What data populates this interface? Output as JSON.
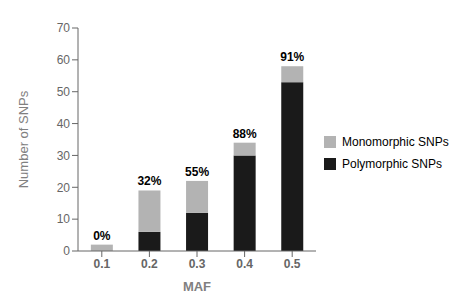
{
  "chart_data": {
    "type": "bar",
    "stacked": true,
    "categories": [
      "0.1",
      "0.2",
      "0.3",
      "0.4",
      "0.5"
    ],
    "series": [
      {
        "name": "Polymorphic SNPs",
        "color": "#1a1a1a",
        "values": [
          0,
          6,
          12,
          30,
          53
        ]
      },
      {
        "name": "Monomorphic SNPs",
        "color": "#b3b3b3",
        "values": [
          2,
          13,
          10,
          4,
          5
        ]
      }
    ],
    "annotations": [
      "0%",
      "32%",
      "55%",
      "88%",
      "91%"
    ],
    "xlabel": "MAF",
    "ylabel": "Number of SNPs",
    "ylim": [
      0,
      70
    ],
    "yticks": [
      0,
      10,
      20,
      30,
      40,
      50,
      60,
      70
    ],
    "grid": false,
    "legend": "right"
  }
}
